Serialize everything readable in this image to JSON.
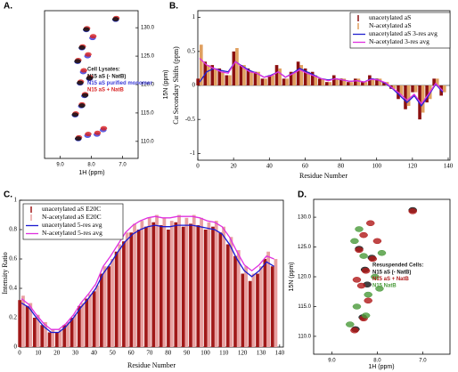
{
  "chart_data": [
    {
      "type": "scatter",
      "panel_label": "A.",
      "xlabel": "1H (ppm)",
      "ylabel": "15N (ppm)",
      "legend_title": "Cell Lysates:",
      "xlim": [
        9.5,
        6.5
      ],
      "ylim": [
        107,
        133
      ],
      "xticks": [
        {
          "value": 9,
          "label": "9.0"
        },
        {
          "value": 8,
          "label": "8.0"
        },
        {
          "value": 7,
          "label": "7.0"
        }
      ],
      "yticks": [
        {
          "value": 110,
          "label": "110.0"
        },
        {
          "value": 115,
          "label": "115.0"
        },
        {
          "value": 120,
          "label": "120.0"
        },
        {
          "value": 125,
          "label": "125.0"
        },
        {
          "value": 130,
          "label": "130.0"
        }
      ],
      "series": [
        {
          "name": "N15 aS purified monomer",
          "color": "#3a3ad8",
          "x": [
            8.42,
            8.12,
            7.82,
            8.52,
            8.32,
            8.22,
            8.36,
            8.26,
            8.06,
            8.44,
            8.12,
            8.3,
            7.96,
            8.16,
            7.22,
            7.62
          ],
          "y": [
            110.4,
            111,
            111.2,
            114.6,
            116.2,
            118,
            120.2,
            122.2,
            121,
            124,
            125,
            126.4,
            128.2,
            129.6,
            131.4,
            112
          ]
        },
        {
          "name": "N15 aS + NatB",
          "color": "#d82020",
          "x": [
            8.4,
            8.1,
            7.8,
            8.5,
            8.3,
            8.2,
            8.34,
            8.24,
            8.04,
            8.42,
            8.1,
            8.28,
            7.94,
            8.14,
            7.2,
            7.6
          ],
          "y": [
            110.7,
            111.3,
            111.5,
            114.9,
            116.5,
            118.3,
            120.5,
            122.5,
            121.3,
            124.3,
            125.3,
            126.7,
            128.5,
            129.9,
            131.7,
            112.3
          ]
        },
        {
          "name": "N15 aS (- NatB)",
          "color": "#111111",
          "x": [
            8.42,
            8.52,
            8.3,
            8.2,
            8.36,
            8.06,
            8.44,
            8.3,
            8.16,
            7.22
          ],
          "y": [
            110.5,
            114.7,
            116.3,
            118.1,
            120.3,
            121.1,
            124.1,
            126.5,
            129.7,
            131.5
          ]
        }
      ]
    },
    {
      "type": "bar",
      "panel_label": "B.",
      "xlabel": "Residue Number",
      "ylabel": "Cα Secondary Shifts (ppm)",
      "xlim": [
        0,
        141
      ],
      "ylim": [
        -1.1,
        1.1
      ],
      "xticks": [
        0,
        20,
        40,
        60,
        80,
        100,
        120,
        140
      ],
      "yticks": [
        -1,
        -0.5,
        0,
        0.5,
        1
      ],
      "x": [
        1,
        5,
        9,
        13,
        17,
        21,
        25,
        29,
        33,
        37,
        41,
        45,
        49,
        53,
        57,
        61,
        65,
        69,
        73,
        77,
        81,
        85,
        89,
        93,
        97,
        101,
        105,
        109,
        113,
        117,
        121,
        125,
        129,
        133,
        137
      ],
      "series": [
        {
          "name": "unacetylated aS",
          "mark": "bar",
          "color": "#8b1010",
          "values": [
            0.1,
            0.35,
            0.3,
            0.25,
            0.15,
            0.5,
            0.3,
            0.25,
            0.2,
            0.1,
            0.15,
            0.3,
            0.1,
            0.2,
            0.35,
            0.25,
            0.2,
            0.1,
            0.05,
            0.15,
            0.1,
            0.05,
            0.1,
            0.05,
            0.15,
            0.1,
            0.05,
            -0.05,
            -0.2,
            -0.35,
            -0.1,
            -0.5,
            -0.25,
            0.1,
            -0.15
          ]
        },
        {
          "name": "N-acetylated aS",
          "mark": "bar",
          "color": "#e0a060",
          "values": [
            0.6,
            0.3,
            0.25,
            0.2,
            0.15,
            0.55,
            0.3,
            0.2,
            0.2,
            0.1,
            0.15,
            0.25,
            0.1,
            0.2,
            0.3,
            0.2,
            0.15,
            0.1,
            0.05,
            0.1,
            0.1,
            0.05,
            0.1,
            0.05,
            0.1,
            0.1,
            0.05,
            -0.05,
            -0.15,
            -0.3,
            -0.1,
            -0.4,
            -0.2,
            0.1,
            -0.1
          ]
        },
        {
          "name": "unacetylated aS 3-res avg",
          "mark": "line",
          "color": "#2020d0",
          "values": [
            0.05,
            0.2,
            0.25,
            0.22,
            0.2,
            0.35,
            0.28,
            0.22,
            0.18,
            0.12,
            0.15,
            0.2,
            0.12,
            0.18,
            0.25,
            0.2,
            0.15,
            0.1,
            0.08,
            0.1,
            0.08,
            0.06,
            0.07,
            0.05,
            0.1,
            0.08,
            0.03,
            -0.05,
            -0.15,
            -0.25,
            -0.15,
            -0.3,
            -0.15,
            0.02,
            -0.1
          ]
        },
        {
          "name": "N-acetylated 3-res avg",
          "mark": "line",
          "color": "#e030e0",
          "values": [
            0.4,
            0.3,
            0.25,
            0.2,
            0.18,
            0.35,
            0.27,
            0.2,
            0.18,
            0.12,
            0.14,
            0.2,
            0.12,
            0.17,
            0.23,
            0.18,
            0.14,
            0.1,
            0.07,
            0.1,
            0.08,
            0.06,
            0.07,
            0.05,
            0.09,
            0.08,
            0.04,
            -0.04,
            -0.12,
            -0.22,
            -0.13,
            -0.27,
            -0.13,
            0.03,
            -0.08
          ]
        }
      ]
    },
    {
      "type": "bar",
      "panel_label": "C.",
      "xlabel": "Residue Number",
      "ylabel": "Intensity Ratio",
      "xlim": [
        0,
        142
      ],
      "ylim": [
        0,
        1
      ],
      "xticks": [
        0,
        10,
        20,
        30,
        40,
        50,
        60,
        70,
        80,
        90,
        100,
        110,
        120,
        130,
        140
      ],
      "yticks": [
        0,
        0.2,
        0.4,
        0.6,
        0.8,
        1
      ],
      "x": [
        1,
        5,
        9,
        13,
        17,
        21,
        25,
        29,
        33,
        37,
        41,
        45,
        49,
        53,
        57,
        61,
        65,
        69,
        73,
        77,
        81,
        85,
        89,
        93,
        97,
        101,
        105,
        109,
        113,
        117,
        121,
        125,
        129,
        133,
        137
      ],
      "series": [
        {
          "name": "unacetylated aS E20C",
          "mark": "bar",
          "color": "#a01818",
          "values": [
            0.32,
            0.28,
            0.2,
            0.15,
            0.1,
            0.1,
            0.15,
            0.2,
            0.28,
            0.33,
            0.38,
            0.5,
            0.55,
            0.65,
            0.72,
            0.78,
            0.8,
            0.82,
            0.85,
            0.83,
            0.8,
            0.85,
            0.82,
            0.84,
            0.83,
            0.8,
            0.82,
            0.78,
            0.7,
            0.62,
            0.5,
            0.45,
            0.5,
            0.6,
            0.55
          ]
        },
        {
          "name": "N-acetylated aS E20C",
          "mark": "bar",
          "color": "#e8a0a0",
          "values": [
            0.35,
            0.3,
            0.22,
            0.17,
            0.12,
            0.12,
            0.17,
            0.22,
            0.3,
            0.36,
            0.42,
            0.55,
            0.6,
            0.7,
            0.78,
            0.84,
            0.86,
            0.88,
            0.9,
            0.88,
            0.86,
            0.9,
            0.88,
            0.9,
            0.88,
            0.85,
            0.86,
            0.82,
            0.75,
            0.66,
            0.55,
            0.5,
            0.55,
            0.65,
            0.6
          ]
        },
        {
          "name": "unacetylated 5-res avg",
          "mark": "line",
          "color": "#1a1ad0",
          "values": [
            0.3,
            0.27,
            0.2,
            0.14,
            0.1,
            0.1,
            0.14,
            0.2,
            0.27,
            0.33,
            0.4,
            0.5,
            0.57,
            0.65,
            0.72,
            0.77,
            0.8,
            0.82,
            0.83,
            0.82,
            0.82,
            0.83,
            0.83,
            0.83,
            0.82,
            0.81,
            0.8,
            0.77,
            0.7,
            0.6,
            0.52,
            0.48,
            0.52,
            0.58,
            0.55
          ]
        },
        {
          "name": "N-acetylated 5-res avg",
          "mark": "line",
          "color": "#e030e0",
          "values": [
            0.33,
            0.29,
            0.22,
            0.16,
            0.12,
            0.12,
            0.16,
            0.22,
            0.3,
            0.36,
            0.43,
            0.55,
            0.62,
            0.7,
            0.78,
            0.83,
            0.86,
            0.88,
            0.89,
            0.88,
            0.88,
            0.89,
            0.89,
            0.89,
            0.88,
            0.86,
            0.85,
            0.82,
            0.75,
            0.65,
            0.56,
            0.52,
            0.56,
            0.62,
            0.6
          ]
        }
      ]
    },
    {
      "type": "scatter",
      "panel_label": "D.",
      "xlabel": "1H (ppm)",
      "ylabel": "15N (ppm)",
      "legend_title": "Resuspended Cells:",
      "xlim": [
        9.4,
        6.4
      ],
      "ylim": [
        107,
        133
      ],
      "xticks": [
        {
          "value": 9,
          "label": "9.0"
        },
        {
          "value": 8,
          "label": "8.0"
        },
        {
          "value": 7,
          "label": "7.0"
        }
      ],
      "yticks": [
        {
          "value": 110,
          "label": "110.0"
        },
        {
          "value": 115,
          "label": "115.0"
        },
        {
          "value": 120,
          "label": "120.0"
        },
        {
          "value": 125,
          "label": "125.0"
        },
        {
          "value": 130,
          "label": "130.0"
        }
      ],
      "series": [
        {
          "name": "N15 aS (- NatB)",
          "color": "#111111",
          "x": [
            8.48,
            8.32,
            8.22,
            8.27,
            8.12,
            8.4,
            7.22
          ],
          "y": [
            111.2,
            113.2,
            118.7,
            121.2,
            123.2,
            124.7,
            131.2
          ]
        },
        {
          "name": "N15 aS + NatB",
          "color": "#b01818",
          "x": [
            8.5,
            8.3,
            8.2,
            8.35,
            8.25,
            8.1,
            8.4,
            8.3,
            8.15,
            8.0,
            8.45,
            7.22
          ],
          "y": [
            111,
            113,
            116,
            118.5,
            121,
            123,
            124.5,
            127,
            129,
            126,
            119.5,
            131
          ]
        },
        {
          "name": "N15 NatB",
          "color": "#4a9a3a",
          "x": [
            8.6,
            8.45,
            8.2,
            8.05,
            8.3,
            7.95,
            8.5,
            7.9,
            8.25,
            8.4
          ],
          "y": [
            112,
            115,
            117,
            120,
            123.5,
            118,
            126,
            124,
            113.5,
            128
          ]
        }
      ]
    }
  ]
}
